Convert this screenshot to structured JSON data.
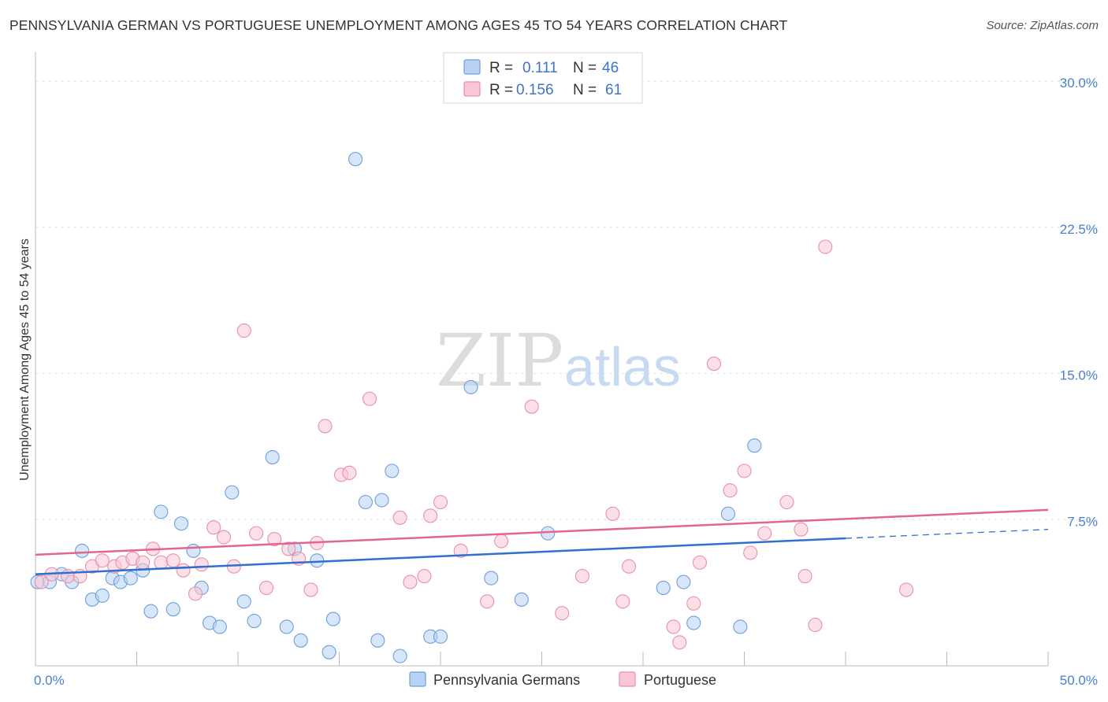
{
  "title": "PENNSYLVANIA GERMAN VS PORTUGUESE UNEMPLOYMENT AMONG AGES 45 TO 54 YEARS CORRELATION CHART",
  "source": "Source: ZipAtlas.com",
  "watermark": {
    "zip": "ZIP",
    "atlas": "atlas"
  },
  "legend": {
    "r_label": "R =",
    "n_label": "N =",
    "rows": [
      {
        "r": "0.111",
        "n": "46",
        "fill": "#b7d2f3",
        "stroke": "#6e9fdc"
      },
      {
        "r": "0.156",
        "n": "61",
        "fill": "#f9c6d5",
        "stroke": "#e98fac"
      }
    ]
  },
  "chart_data": {
    "type": "scatter",
    "xlabel": "",
    "ylabel": "Unemployment Among Ages 45 to 54 years",
    "xlim": [
      0,
      50
    ],
    "ylim": [
      0,
      31.5
    ],
    "x_tick_labels": [
      "0.0%",
      "50.0%"
    ],
    "y_ticks": [
      {
        "value": 7.5,
        "label": "7.5%"
      },
      {
        "value": 15,
        "label": "15.0%"
      },
      {
        "value": 22.5,
        "label": "22.5%"
      },
      {
        "value": 30,
        "label": "30.0%"
      }
    ],
    "grid": "horizontal-dashed",
    "legend_position": "top-center",
    "series": [
      {
        "name": "Pennsylvania Germans",
        "color": "#6e9fdc",
        "fill": "#b7d2f3",
        "line_color": "#2f6fd0",
        "trend": {
          "x": [
            0,
            40,
            50
          ],
          "y": [
            4.7,
            6.5,
            7.0
          ],
          "solid_until": 40
        },
        "points": [
          [
            0.1,
            4.3
          ],
          [
            0.7,
            4.3
          ],
          [
            1.3,
            4.7
          ],
          [
            1.8,
            4.3
          ],
          [
            2.3,
            5.9
          ],
          [
            2.8,
            3.4
          ],
          [
            3.3,
            3.6
          ],
          [
            3.8,
            4.5
          ],
          [
            4.2,
            4.3
          ],
          [
            4.7,
            4.5
          ],
          [
            5.3,
            4.9
          ],
          [
            5.7,
            2.8
          ],
          [
            6.2,
            7.9
          ],
          [
            6.8,
            2.9
          ],
          [
            7.2,
            7.3
          ],
          [
            7.8,
            5.9
          ],
          [
            8.2,
            4.0
          ],
          [
            8.6,
            2.2
          ],
          [
            9.1,
            2.0
          ],
          [
            9.7,
            8.9
          ],
          [
            10.3,
            3.3
          ],
          [
            10.8,
            2.3
          ],
          [
            11.7,
            10.7
          ],
          [
            12.4,
            2.0
          ],
          [
            12.8,
            6.0
          ],
          [
            13.1,
            1.3
          ],
          [
            13.9,
            5.4
          ],
          [
            14.5,
            0.7
          ],
          [
            14.7,
            2.4
          ],
          [
            15.8,
            26.0
          ],
          [
            16.3,
            8.4
          ],
          [
            16.9,
            1.3
          ],
          [
            17.1,
            8.5
          ],
          [
            17.6,
            10.0
          ],
          [
            18.0,
            0.5
          ],
          [
            19.5,
            1.5
          ],
          [
            20.0,
            1.5
          ],
          [
            21.5,
            14.3
          ],
          [
            22.5,
            4.5
          ],
          [
            24.0,
            3.4
          ],
          [
            25.3,
            6.8
          ],
          [
            31.0,
            4.0
          ],
          [
            32.0,
            4.3
          ],
          [
            32.5,
            2.2
          ],
          [
            34.2,
            7.8
          ],
          [
            34.8,
            2.0
          ],
          [
            35.5,
            11.3
          ]
        ]
      },
      {
        "name": "Portuguese",
        "color": "#e98fac",
        "fill": "#f9c6d5",
        "line_color": "#e36590",
        "trend": {
          "x": [
            0,
            50
          ],
          "y": [
            5.7,
            8.0
          ],
          "solid_until": 50
        },
        "points": [
          [
            0.3,
            4.3
          ],
          [
            0.8,
            4.7
          ],
          [
            1.6,
            4.6
          ],
          [
            2.2,
            4.6
          ],
          [
            2.8,
            5.1
          ],
          [
            3.3,
            5.4
          ],
          [
            3.9,
            5.1
          ],
          [
            4.3,
            5.3
          ],
          [
            4.8,
            5.5
          ],
          [
            5.3,
            5.3
          ],
          [
            5.8,
            6.0
          ],
          [
            6.2,
            5.3
          ],
          [
            6.8,
            5.4
          ],
          [
            7.3,
            4.9
          ],
          [
            7.9,
            3.7
          ],
          [
            8.2,
            5.2
          ],
          [
            8.8,
            7.1
          ],
          [
            9.3,
            6.6
          ],
          [
            9.8,
            5.1
          ],
          [
            10.3,
            17.2
          ],
          [
            10.9,
            6.8
          ],
          [
            11.4,
            4.0
          ],
          [
            11.8,
            6.5
          ],
          [
            12.5,
            6.0
          ],
          [
            13.0,
            5.5
          ],
          [
            13.6,
            3.9
          ],
          [
            13.9,
            6.3
          ],
          [
            14.3,
            12.3
          ],
          [
            15.1,
            9.8
          ],
          [
            15.5,
            9.9
          ],
          [
            16.5,
            13.7
          ],
          [
            18.0,
            7.6
          ],
          [
            18.5,
            4.3
          ],
          [
            19.2,
            4.6
          ],
          [
            19.5,
            7.7
          ],
          [
            20.0,
            8.4
          ],
          [
            21.0,
            5.9
          ],
          [
            22.3,
            3.3
          ],
          [
            23.0,
            6.4
          ],
          [
            24.5,
            13.3
          ],
          [
            26.0,
            2.7
          ],
          [
            27.0,
            4.6
          ],
          [
            28.5,
            7.8
          ],
          [
            29.0,
            3.3
          ],
          [
            29.3,
            5.1
          ],
          [
            31.5,
            2.0
          ],
          [
            31.8,
            1.2
          ],
          [
            32.5,
            3.2
          ],
          [
            32.8,
            5.3
          ],
          [
            33.5,
            15.5
          ],
          [
            34.3,
            9.0
          ],
          [
            35.0,
            10.0
          ],
          [
            35.3,
            5.8
          ],
          [
            36.0,
            6.8
          ],
          [
            37.1,
            8.4
          ],
          [
            37.8,
            7.0
          ],
          [
            38.0,
            4.6
          ],
          [
            38.5,
            2.1
          ],
          [
            39.0,
            21.5
          ],
          [
            43.0,
            3.9
          ]
        ]
      }
    ]
  }
}
